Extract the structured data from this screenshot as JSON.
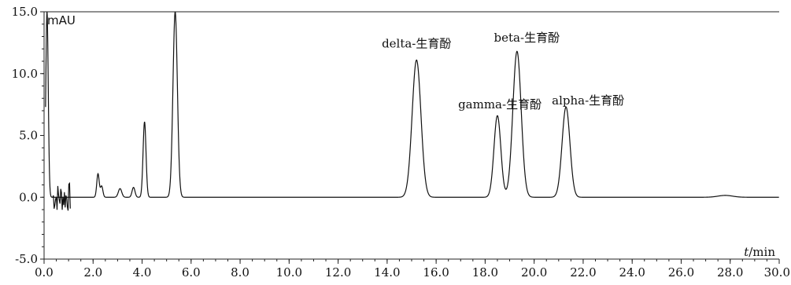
{
  "chart_data": {
    "type": "line",
    "title": "",
    "ylabel": "mAU",
    "xlabel_italic": "t",
    "xlabel_rest": "/min",
    "xlim": [
      0.0,
      30.0
    ],
    "ylim": [
      -5.0,
      15.0
    ],
    "x_ticks": [
      "0.0",
      "2.0",
      "4.0",
      "6.0",
      "8.0",
      "10.0",
      "12.0",
      "14.0",
      "16.0",
      "18.0",
      "20.0",
      "22.0",
      "24.0",
      "26.0",
      "28.0",
      "30.0"
    ],
    "x_tick_values": [
      0,
      2,
      4,
      6,
      8,
      10,
      12,
      14,
      16,
      18,
      20,
      22,
      24,
      26,
      28,
      30
    ],
    "y_ticks": [
      "15.0",
      "10.0",
      "5.0",
      "0.0",
      "-5.0"
    ],
    "y_tick_values": [
      15,
      10,
      5,
      0,
      -5
    ],
    "grid": false,
    "peaks": [
      {
        "t": 0.12,
        "height": 15.0,
        "width": 0.05
      },
      {
        "t": 2.2,
        "height": 1.9,
        "width": 0.05
      },
      {
        "t": 2.35,
        "height": 0.9,
        "width": 0.05
      },
      {
        "t": 3.1,
        "height": 0.7,
        "width": 0.07
      },
      {
        "t": 3.65,
        "height": 0.8,
        "width": 0.06
      },
      {
        "t": 4.1,
        "height": 6.1,
        "width": 0.06
      },
      {
        "t": 5.35,
        "height": 15.0,
        "width": 0.09
      },
      {
        "t": 15.2,
        "height": 11.1,
        "width": 0.18
      },
      {
        "t": 18.5,
        "height": 6.6,
        "width": 0.14
      },
      {
        "t": 19.3,
        "height": 11.8,
        "width": 0.17
      },
      {
        "t": 21.3,
        "height": 7.3,
        "width": 0.16
      },
      {
        "t": 27.8,
        "height": 0.15,
        "width": 0.3
      }
    ],
    "annotations": [
      {
        "label": "delta-生育酚",
        "t": 15.2,
        "y": 12.1
      },
      {
        "label": "gamma-生育酚",
        "t": 18.6,
        "y": 7.2
      },
      {
        "label": "beta-生育酚",
        "t": 19.7,
        "y": 12.6
      },
      {
        "label": "alpha-生育酚",
        "t": 22.2,
        "y": 7.5
      }
    ]
  }
}
